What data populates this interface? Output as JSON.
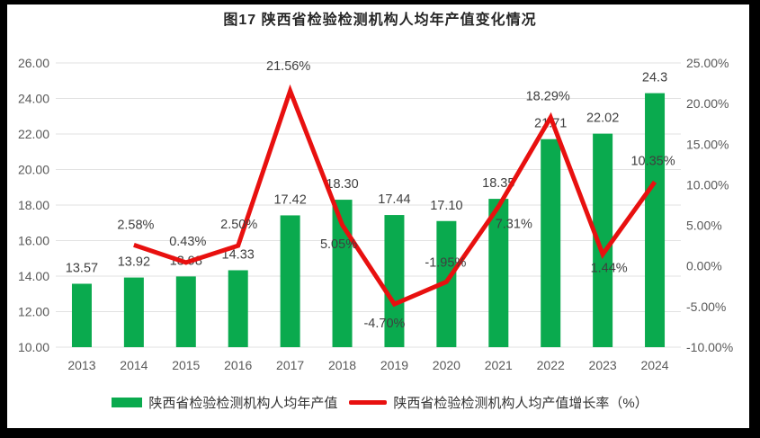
{
  "chart_data": {
    "type": "bar+line",
    "title": "图17 陕西省检验检测机构人均年产值变化情况",
    "categories": [
      "2013",
      "2014",
      "2015",
      "2016",
      "2017",
      "2018",
      "2019",
      "2020",
      "2021",
      "2022",
      "2023",
      "2024"
    ],
    "series": [
      {
        "name": "陕西省检验检测机构人均年产值",
        "type": "bar",
        "axis": "left",
        "color": "#0aaa4e",
        "values": [
          13.57,
          13.92,
          13.98,
          14.33,
          17.42,
          18.3,
          17.44,
          17.1,
          18.35,
          21.71,
          22.02,
          24.3
        ],
        "labels": [
          "13.57",
          "13.92",
          "13.98",
          "14.33",
          "17.42",
          "18.30",
          "17.44",
          "17.10",
          "18.35",
          "21.71",
          "22.02",
          "24.3"
        ]
      },
      {
        "name": "陕西省检验检测机构人均产值增长率（%）",
        "type": "line",
        "axis": "right",
        "color": "#e8100f",
        "values": [
          null,
          2.58,
          0.43,
          2.5,
          21.56,
          5.05,
          -4.7,
          -1.95,
          7.31,
          18.29,
          1.44,
          10.35
        ],
        "labels": [
          null,
          "2.58%",
          "0.43%",
          "2.50%",
          "21.56%",
          "5.05%",
          "-4.70%",
          "-1.95%",
          "7.31%",
          "18.29%",
          "1.44%",
          "10.35%"
        ],
        "label_offsets": [
          [
            0,
            0
          ],
          [
            2,
            -23
          ],
          [
            2,
            -24
          ],
          [
            1,
            -24
          ],
          [
            -2,
            -28
          ],
          [
            -4,
            21
          ],
          [
            -11,
            21
          ],
          [
            -1,
            -22
          ],
          [
            17,
            19
          ],
          [
            -3,
            -24
          ],
          [
            7,
            15
          ],
          [
            -2,
            -24
          ]
        ]
      }
    ],
    "left_axis": {
      "min": 10,
      "max": 26,
      "ticks": [
        "26.00",
        "24.00",
        "22.00",
        "20.00",
        "18.00",
        "16.00",
        "14.00",
        "12.00",
        "10.00"
      ]
    },
    "right_axis": {
      "min": -10,
      "max": 25,
      "ticks": [
        "25.00%",
        "20.00%",
        "15.00%",
        "10.00%",
        "5.00%",
        "0.00%",
        "-5.00%",
        "-10.00%"
      ]
    },
    "grid": true,
    "legend_position": "bottom",
    "colors": {
      "gridline": "#e2e2e2",
      "axis_text": "#595959",
      "data_label": "#3f3f3f",
      "title_text": "#262626"
    }
  }
}
